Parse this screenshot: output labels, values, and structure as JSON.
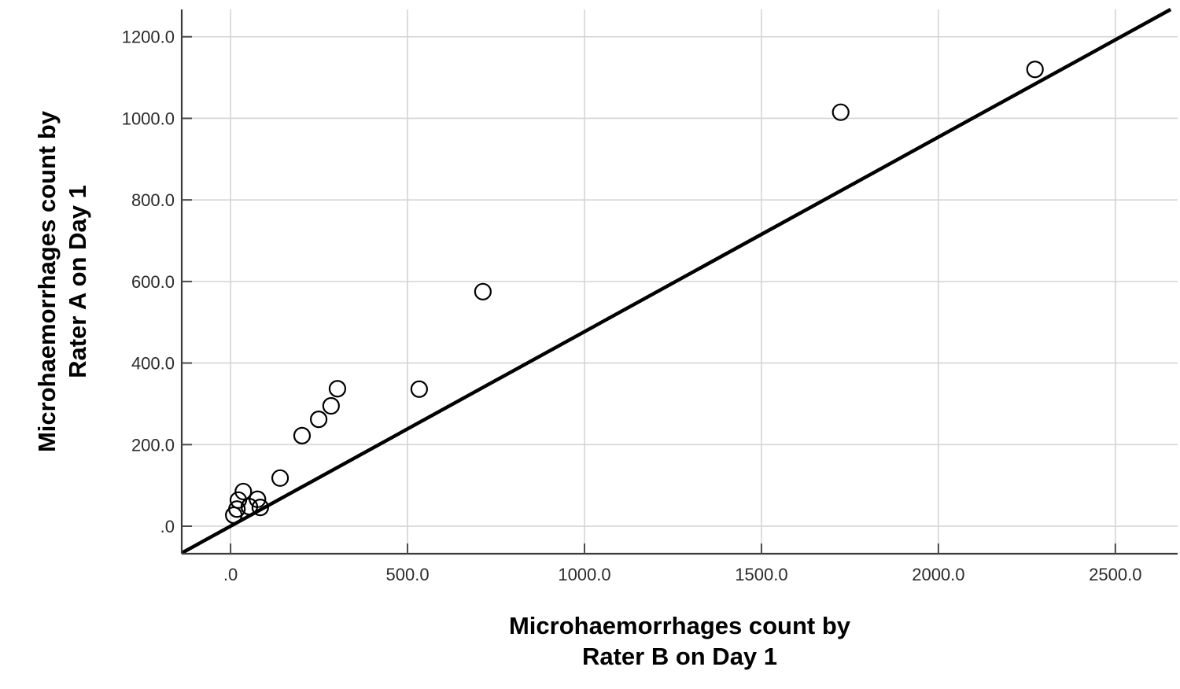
{
  "figure": {
    "background": "#ffffff"
  },
  "chart_data": {
    "type": "scatter",
    "title": "",
    "xlabel_lines": [
      "Microhaemorrhages count by",
      "Rater B on Day 1"
    ],
    "ylabel_lines": [
      "Microhaemorrhages count by",
      "Rater A on Day 1"
    ],
    "x_ticks": [
      {
        "value": 0,
        "label": ".0"
      },
      {
        "value": 500,
        "label": "500.0"
      },
      {
        "value": 1000,
        "label": "1000.0"
      },
      {
        "value": 1500,
        "label": "1500.0"
      },
      {
        "value": 2000,
        "label": "2000.0"
      },
      {
        "value": 2500,
        "label": "2500.0"
      }
    ],
    "y_ticks": [
      {
        "value": 0,
        "label": ".0"
      },
      {
        "value": 200,
        "label": "200.0"
      },
      {
        "value": 400,
        "label": "400.0"
      },
      {
        "value": 600,
        "label": "600.0"
      },
      {
        "value": 800,
        "label": "800.0"
      },
      {
        "value": 1000,
        "label": "1000.0"
      },
      {
        "value": 1200,
        "label": "1200.0"
      }
    ],
    "xlim": [
      -138,
      2676
    ],
    "ylim": [
      -67.5,
      1267
    ],
    "grid": true,
    "points": [
      [
        9,
        27
      ],
      [
        18,
        42
      ],
      [
        22,
        64
      ],
      [
        36,
        85
      ],
      [
        53,
        48
      ],
      [
        76,
        66
      ],
      [
        84,
        46
      ],
      [
        140,
        118
      ],
      [
        202,
        222
      ],
      [
        249,
        262
      ],
      [
        284,
        295
      ],
      [
        302,
        337
      ],
      [
        533,
        336
      ],
      [
        713,
        575
      ],
      [
        1724,
        1015
      ],
      [
        2273,
        1120
      ]
    ],
    "fit_line": {
      "slope": 0.477,
      "intercept": 0
    },
    "marker": {
      "shape": "circle",
      "radius_px": 10,
      "stroke": "#000000",
      "fill": "none"
    },
    "colors": {
      "grid": "#d4d4d4",
      "axis": "#3a3a3a",
      "tick": "#4a4a4a",
      "fit_line": "#000000",
      "tick_text": "#2b2b2b",
      "title_text": "#000000"
    }
  }
}
